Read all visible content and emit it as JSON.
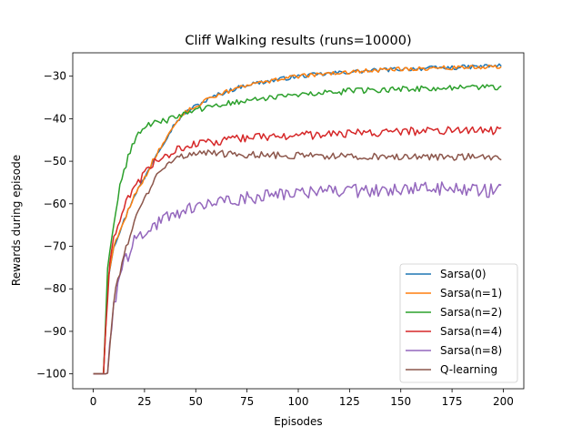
{
  "chart_data": {
    "type": "line",
    "title": "Cliff Walking results (runs=10000)",
    "xlabel": "Episodes",
    "ylabel": "Rewards during episode",
    "xlim": [
      -10,
      210
    ],
    "ylim": [
      -103.5,
      -24.5
    ],
    "xticks": [
      0,
      25,
      50,
      75,
      100,
      125,
      150,
      175,
      200
    ],
    "yticks": [
      -100,
      -90,
      -80,
      -70,
      -60,
      -50,
      -40,
      -30
    ],
    "ytick_labels": [
      "−100",
      "−90",
      "−80",
      "−70",
      "−60",
      "−50",
      "−40",
      "−30"
    ],
    "legend_position": "lower-right",
    "grid": false,
    "x_start": 0,
    "x_end": 199,
    "series": [
      {
        "name": "Sarsa(0)",
        "color": "#1f77b4",
        "control_points": [
          [
            0,
            -100
          ],
          [
            5,
            -100
          ],
          [
            6,
            -90
          ],
          [
            7,
            -78
          ],
          [
            10,
            -70
          ],
          [
            15,
            -64
          ],
          [
            20,
            -58
          ],
          [
            25,
            -54
          ],
          [
            30,
            -49
          ],
          [
            35,
            -45
          ],
          [
            40,
            -41
          ],
          [
            45,
            -38.5
          ],
          [
            50,
            -37
          ],
          [
            60,
            -34.5
          ],
          [
            75,
            -32
          ],
          [
            100,
            -30
          ],
          [
            125,
            -29
          ],
          [
            150,
            -28.3
          ],
          [
            175,
            -28
          ],
          [
            199,
            -27.5
          ]
        ],
        "noise": 0.5
      },
      {
        "name": "Sarsa(n=1)",
        "color": "#ff7f0e",
        "control_points": [
          [
            0,
            -100
          ],
          [
            5,
            -100
          ],
          [
            6,
            -90
          ],
          [
            7,
            -78
          ],
          [
            10,
            -70
          ],
          [
            15,
            -64
          ],
          [
            20,
            -58
          ],
          [
            25,
            -54
          ],
          [
            30,
            -49
          ],
          [
            35,
            -45
          ],
          [
            40,
            -41
          ],
          [
            45,
            -38.5
          ],
          [
            50,
            -37
          ],
          [
            60,
            -34.5
          ],
          [
            75,
            -32
          ],
          [
            100,
            -30
          ],
          [
            125,
            -29
          ],
          [
            150,
            -28.3
          ],
          [
            175,
            -28
          ],
          [
            199,
            -27.8
          ]
        ],
        "noise": 0.5
      },
      {
        "name": "Sarsa(n=2)",
        "color": "#2ca02c",
        "control_points": [
          [
            0,
            -100
          ],
          [
            5,
            -100
          ],
          [
            6,
            -88
          ],
          [
            7,
            -75
          ],
          [
            10,
            -65
          ],
          [
            13,
            -56
          ],
          [
            17,
            -49
          ],
          [
            21,
            -44
          ],
          [
            25,
            -42
          ],
          [
            30,
            -41
          ],
          [
            35,
            -40.5
          ],
          [
            40,
            -39.5
          ],
          [
            50,
            -38
          ],
          [
            75,
            -35.5
          ],
          [
            100,
            -34.5
          ],
          [
            125,
            -33.5
          ],
          [
            150,
            -33
          ],
          [
            175,
            -32.8
          ],
          [
            199,
            -32.5
          ]
        ],
        "noise": 0.7
      },
      {
        "name": "Sarsa(n=4)",
        "color": "#d62728",
        "control_points": [
          [
            0,
            -100
          ],
          [
            5,
            -100
          ],
          [
            6,
            -90
          ],
          [
            8,
            -75
          ],
          [
            10,
            -68
          ],
          [
            15,
            -61
          ],
          [
            20,
            -56
          ],
          [
            25,
            -53
          ],
          [
            30,
            -50
          ],
          [
            40,
            -47.5
          ],
          [
            50,
            -46
          ],
          [
            75,
            -44.5
          ],
          [
            100,
            -44
          ],
          [
            125,
            -43.5
          ],
          [
            150,
            -43
          ],
          [
            175,
            -42.8
          ],
          [
            199,
            -42.7
          ]
        ],
        "noise": 1.0
      },
      {
        "name": "Sarsa(n=8)",
        "color": "#9467bd",
        "control_points": [
          [
            0,
            -100
          ],
          [
            5,
            -100
          ],
          [
            7,
            -100
          ],
          [
            8,
            -92
          ],
          [
            10,
            -84
          ],
          [
            12,
            -79
          ],
          [
            15,
            -74
          ],
          [
            20,
            -69
          ],
          [
            25,
            -67
          ],
          [
            30,
            -65
          ],
          [
            40,
            -62.5
          ],
          [
            50,
            -61
          ],
          [
            75,
            -58.5
          ],
          [
            100,
            -57.5
          ],
          [
            125,
            -57
          ],
          [
            150,
            -56.5
          ],
          [
            175,
            -56.5
          ],
          [
            199,
            -57
          ]
        ],
        "noise": 1.6
      },
      {
        "name": "Q-learning",
        "color": "#8c564b",
        "control_points": [
          [
            0,
            -100
          ],
          [
            5,
            -100
          ],
          [
            7,
            -100
          ],
          [
            9,
            -88
          ],
          [
            11,
            -80
          ],
          [
            15,
            -72
          ],
          [
            20,
            -64
          ],
          [
            25,
            -59
          ],
          [
            30,
            -54
          ],
          [
            35,
            -51
          ],
          [
            40,
            -49
          ],
          [
            50,
            -48
          ],
          [
            75,
            -48.5
          ],
          [
            100,
            -48.7
          ],
          [
            125,
            -48.8
          ],
          [
            150,
            -48.9
          ],
          [
            175,
            -49
          ],
          [
            199,
            -49
          ]
        ],
        "noise": 0.8
      }
    ]
  }
}
